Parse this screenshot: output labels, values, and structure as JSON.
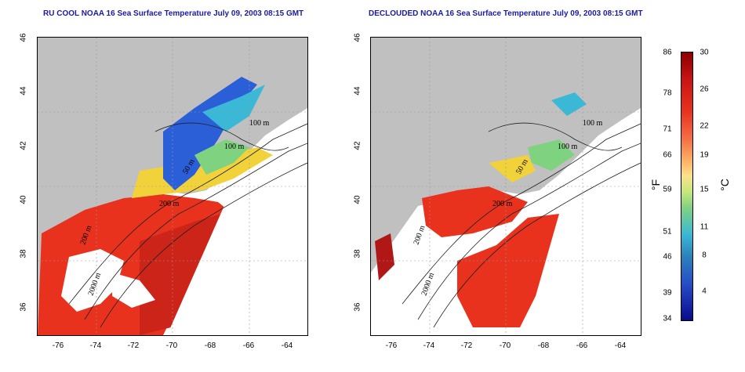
{
  "titles": {
    "left": "RU COOL NOAA 16 Sea Surface Temperature July 09, 2003 08:15 GMT",
    "right": "DECLOUDED NOAA 16 Sea Surface Temperature July 09, 2003 08:15 GMT"
  },
  "map": {
    "lon_ticks": [
      "-76",
      "-74",
      "-72",
      "-70",
      "-68",
      "-66",
      "-64"
    ],
    "lat_ticks": [
      "46",
      "44",
      "42",
      "40",
      "38",
      "36"
    ],
    "contour_labels": {
      "c100a": "100 m",
      "c100b": "100 m",
      "c50": "50 m",
      "c200": "200 m",
      "c2000": "2000 m",
      "c200b": "200 m"
    }
  },
  "colorbar": {
    "fahrenheit_label": "°F",
    "celsius_label": "°C",
    "fahrenheit_ticks": [
      "86",
      "78",
      "71",
      "66",
      "59",
      "51",
      "46",
      "39",
      "34"
    ],
    "celsius_ticks": [
      "30",
      "26",
      "22",
      "19",
      "15",
      "11",
      "8",
      "4"
    ],
    "colors": [
      "#8b0000",
      "#d7191c",
      "#f46d43",
      "#fdae61",
      "#fee08b",
      "#e6f598",
      "#abdda4",
      "#66c2a5",
      "#3bb8d6",
      "#2b83ba",
      "#2650c8",
      "#0a0a8c"
    ]
  },
  "colors": {
    "land": "#c0c0c0",
    "cloud": "#ffffff",
    "warm": "#e8321e",
    "hot": "#b01818",
    "cool_green": "#7fd27f",
    "cold_blue": "#2a5fd8",
    "title": "#1a1aa6"
  }
}
